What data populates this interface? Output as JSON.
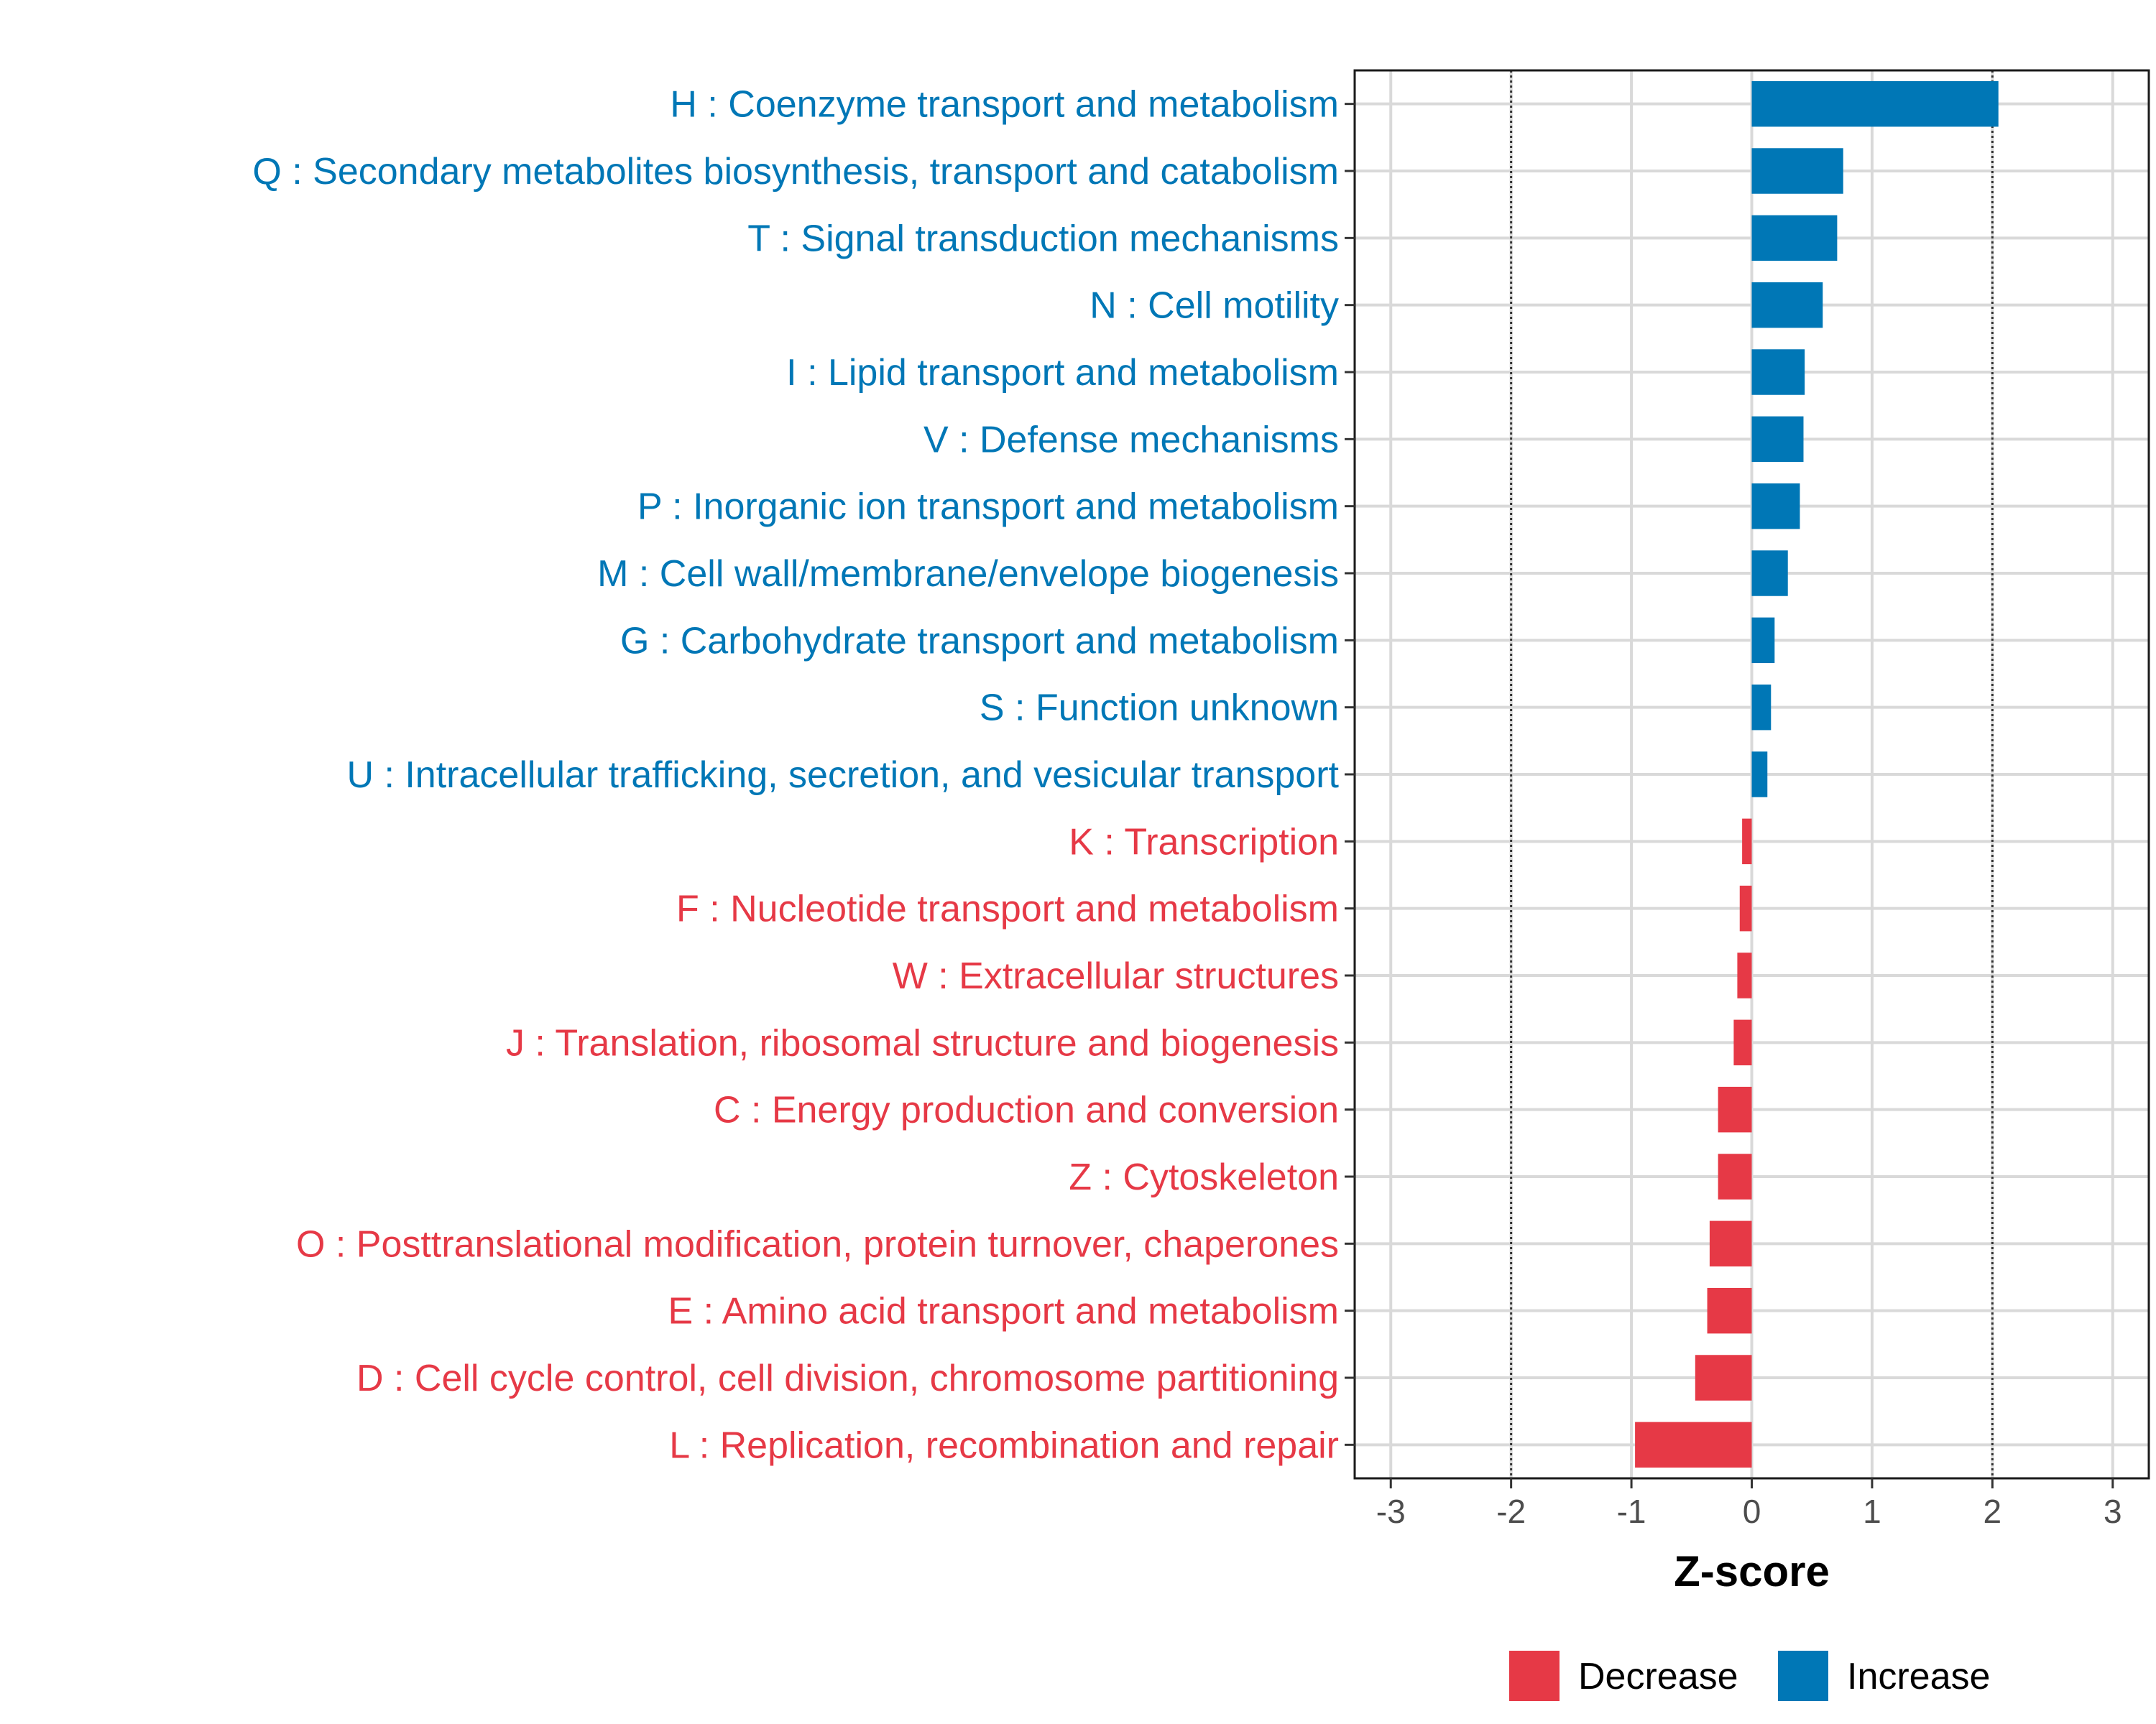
{
  "chart_data": {
    "type": "bar",
    "orientation": "horizontal",
    "title": "",
    "xlabel": "Z-score",
    "ylabel": "",
    "xlim": [
      -3.3,
      3.3
    ],
    "x_ticks": [
      -3,
      -2,
      -1,
      0,
      1,
      2,
      3
    ],
    "x_tick_labels": [
      "-3",
      "-2",
      "-1",
      "0",
      "1",
      "2",
      "3"
    ],
    "threshold_lines": [
      -2,
      2
    ],
    "grid": true,
    "legend_position": "bottom",
    "legend": [
      {
        "name": "Decrease",
        "color": "#E63946"
      },
      {
        "name": "Increase",
        "color": "#0077B6"
      }
    ],
    "categories": [
      "H : Coenzyme transport and metabolism",
      "Q : Secondary metabolites biosynthesis, transport and catabolism",
      "T : Signal transduction mechanisms",
      "N : Cell motility",
      "I : Lipid transport and metabolism",
      "V : Defense mechanisms",
      "P : Inorganic ion transport and metabolism",
      "M : Cell wall/membrane/envelope biogenesis",
      "G : Carbohydrate transport and metabolism",
      "S : Function unknown",
      "U : Intracellular trafficking, secretion, and vesicular transport",
      "K : Transcription",
      "F : Nucleotide transport and metabolism",
      "W : Extracellular structures",
      "J : Translation, ribosomal structure and biogenesis",
      "C : Energy production and conversion",
      "Z : Cytoskeleton",
      "O : Posttranslational modification, protein turnover, chaperones",
      "E : Amino acid transport and metabolism",
      "D : Cell cycle control, cell division, chromosome partitioning",
      "L : Replication, recombination and repair"
    ],
    "values": [
      2.05,
      0.76,
      0.71,
      0.59,
      0.44,
      0.43,
      0.4,
      0.3,
      0.19,
      0.16,
      0.13,
      -0.08,
      -0.1,
      -0.12,
      -0.15,
      -0.28,
      -0.28,
      -0.35,
      -0.37,
      -0.47,
      -0.97
    ],
    "groups": [
      "Increase",
      "Increase",
      "Increase",
      "Increase",
      "Increase",
      "Increase",
      "Increase",
      "Increase",
      "Increase",
      "Increase",
      "Increase",
      "Decrease",
      "Decrease",
      "Decrease",
      "Decrease",
      "Decrease",
      "Decrease",
      "Decrease",
      "Decrease",
      "Decrease",
      "Decrease"
    ]
  }
}
